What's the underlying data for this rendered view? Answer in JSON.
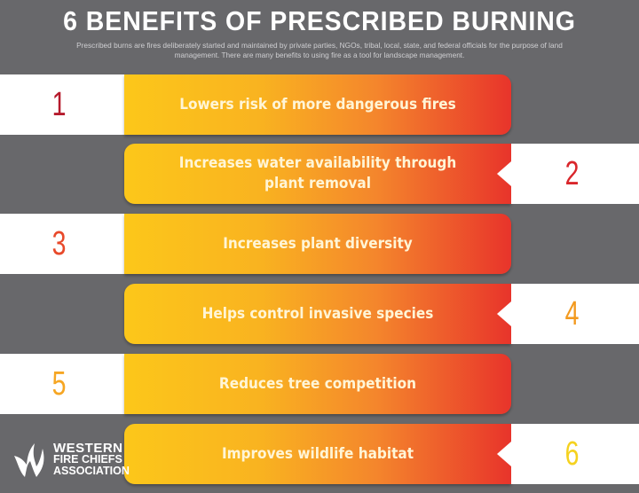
{
  "title": "6 BENEFITS OF PRESCRIBED BURNING",
  "subtitle": "Prescribed burns are fires deliberately started and maintained by private parties, NGOs, tribal, local, state, and federal officials for the purpose of land management. There are many benefits to using fire as a tool for landscape management.",
  "benefits": [
    {
      "number": "1",
      "text": "Lowers risk of more dangerous fires",
      "color": "#b51a2c"
    },
    {
      "number": "2",
      "text": "Increases water availability through plant removal",
      "color": "#d9262b"
    },
    {
      "number": "3",
      "text": "Increases plant diversity",
      "color": "#e8492a"
    },
    {
      "number": "4",
      "text": "Helps control invasive species",
      "color": "#f39a1f"
    },
    {
      "number": "5",
      "text": "Reduces tree competition",
      "color": "#f6a623"
    },
    {
      "number": "6",
      "text": "Improves wildlife habitat",
      "color": "#f5d21f"
    }
  ],
  "logo": {
    "line1": "WESTERN",
    "line2": "FIRE CHIEFS",
    "line3": "ASSOCIATION",
    "icon": "flame-w-icon"
  }
}
